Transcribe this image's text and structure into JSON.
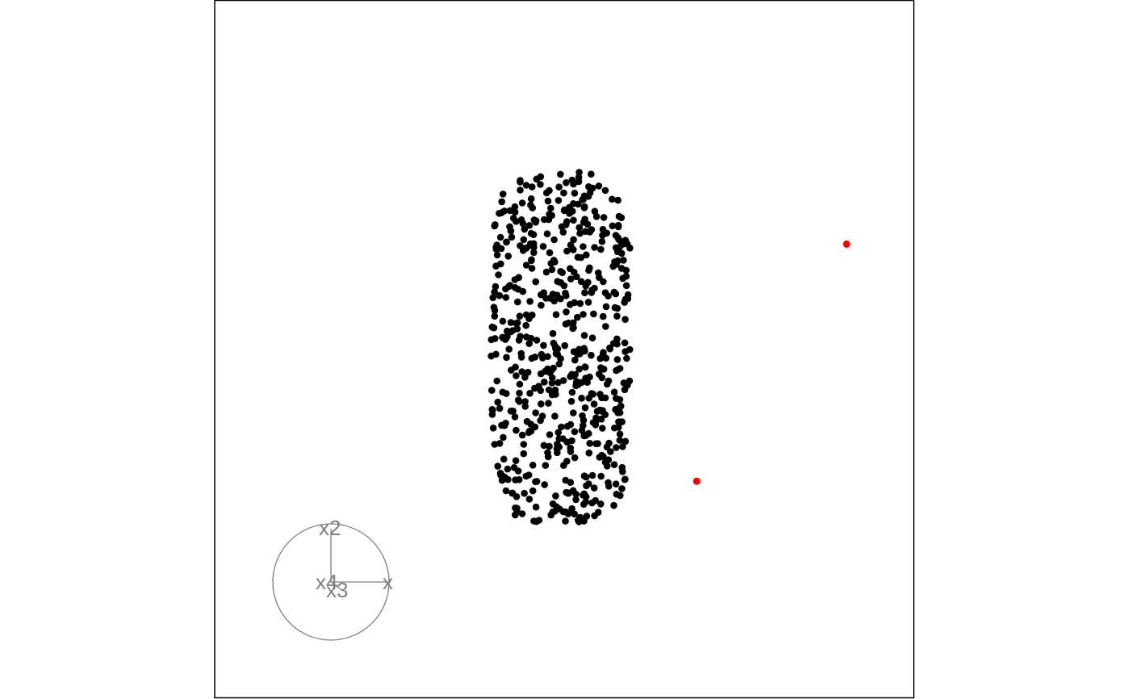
{
  "chart_data": {
    "type": "scatter",
    "title": "",
    "xlabel": "",
    "ylabel": "",
    "xlim": [
      -1,
      1
    ],
    "ylim": [
      -1,
      1
    ],
    "grid": false,
    "colors": {
      "points": "#000000",
      "highlight": "#ff0000",
      "axes": "#808080",
      "frame": "#000000"
    },
    "cluster": {
      "count": 600,
      "x_range": [
        -0.21,
        0.19
      ],
      "y_range": [
        -0.5,
        0.51
      ]
    },
    "highlighted_points": [
      {
        "x": 0.81,
        "y": 0.3
      },
      {
        "x": 0.38,
        "y": -0.38
      }
    ],
    "axes_guide": {
      "labels": [
        {
          "name": "x1",
          "text": "x",
          "x": 0.17,
          "y": 0.0
        },
        {
          "name": "x2",
          "text": "x2",
          "x": 0.0,
          "y": 0.17
        },
        {
          "name": "x3",
          "text": "x3",
          "x": 0.03,
          "y": -0.03
        },
        {
          "name": "x4",
          "text": "x4",
          "x": -0.005,
          "y": 0.0
        }
      ]
    }
  }
}
